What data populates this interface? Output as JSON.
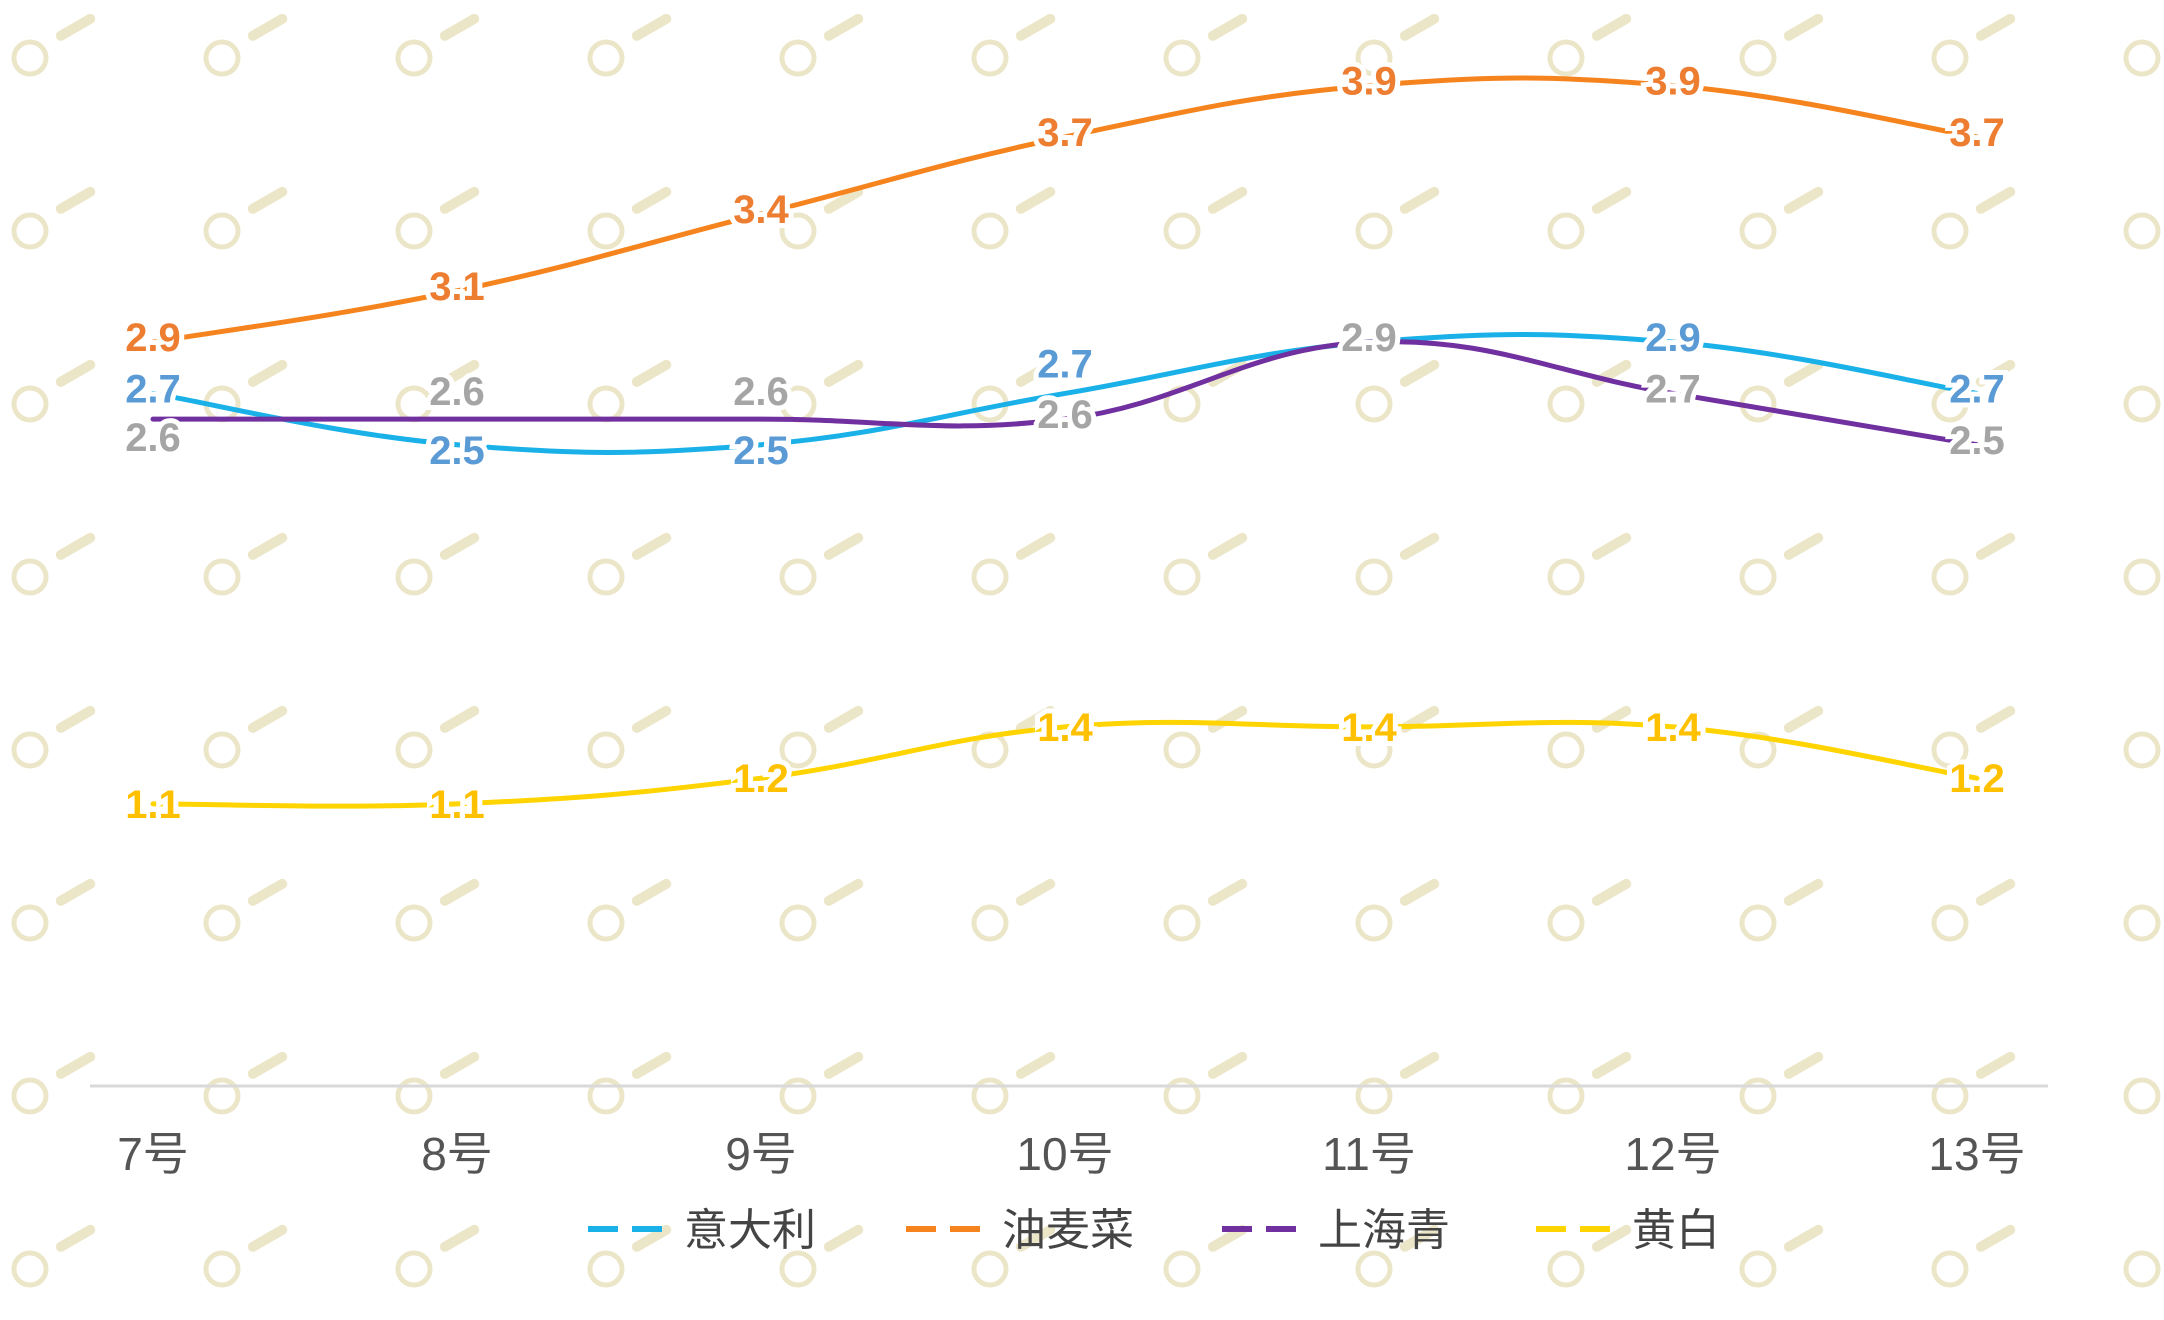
{
  "chart_data": {
    "type": "line",
    "title": "",
    "xlabel": "",
    "ylabel": "",
    "smooth": true,
    "x_axis_visible": true,
    "y_axis_visible": false,
    "grid": false,
    "legend_position": "bottom",
    "categories": [
      "7号",
      "8号",
      "9号",
      "10号",
      "11号",
      "12号",
      "13号"
    ],
    "ylim": [
      0,
      4.2
    ],
    "series": [
      {
        "name": "意大利",
        "color": "#1ab0e8",
        "label_color": "#5b9bd5",
        "values": [
          2.7,
          2.5,
          2.5,
          2.7,
          2.9,
          2.9,
          2.7
        ]
      },
      {
        "name": "油麦菜",
        "color": "#f5841f",
        "label_color": "#ed7d31",
        "values": [
          2.9,
          3.1,
          3.4,
          3.7,
          3.9,
          3.9,
          3.7
        ]
      },
      {
        "name": "上海青",
        "color": "#7030a0",
        "label_color": "#a5a5a5",
        "values": [
          2.6,
          2.6,
          2.6,
          2.6,
          2.9,
          2.7,
          2.5
        ]
      },
      {
        "name": "黄白",
        "color": "#ffd400",
        "label_color": "#ffc000",
        "values": [
          1.1,
          1.1,
          1.2,
          1.4,
          1.4,
          1.4,
          1.2
        ]
      }
    ]
  }
}
